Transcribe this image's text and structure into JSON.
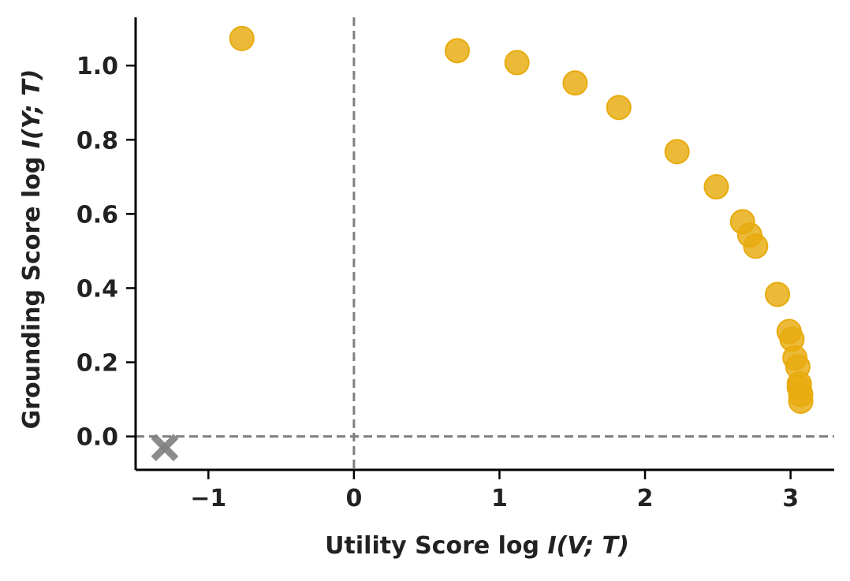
{
  "chart_data": {
    "type": "scatter",
    "xlabel_prefix": "Utility Score log ",
    "xlabel_math": "I(V; T)",
    "ylabel_prefix": "Grounding Score log ",
    "ylabel_math": "I(Y; T)",
    "xlim": [
      -1.5,
      3.3
    ],
    "ylim": [
      -0.09,
      1.13
    ],
    "x_ticks": [
      -1,
      0,
      1,
      2,
      3
    ],
    "x_tick_labels": [
      "−1",
      "0",
      "1",
      "2",
      "3"
    ],
    "y_ticks": [
      0.0,
      0.2,
      0.4,
      0.6,
      0.8,
      1.0
    ],
    "y_tick_labels": [
      "0.0",
      "0.2",
      "0.4",
      "0.6",
      "0.8",
      "1.0"
    ],
    "reference_lines": {
      "x": 0,
      "y": 0,
      "style": "dashed",
      "color": "#808080"
    },
    "grid": false,
    "series": [
      {
        "marker": "circle",
        "color": "#E8AB0E",
        "points": [
          [
            -0.77,
            1.073
          ],
          [
            0.71,
            1.04
          ],
          [
            1.12,
            1.008
          ],
          [
            1.52,
            0.953
          ],
          [
            1.82,
            0.887
          ],
          [
            2.22,
            0.768
          ],
          [
            2.49,
            0.673
          ],
          [
            2.67,
            0.579
          ],
          [
            2.72,
            0.543
          ],
          [
            2.76,
            0.513
          ],
          [
            2.91,
            0.383
          ],
          [
            2.99,
            0.283
          ],
          [
            3.01,
            0.262
          ],
          [
            3.03,
            0.212
          ],
          [
            3.05,
            0.188
          ],
          [
            3.06,
            0.142
          ],
          [
            3.06,
            0.132
          ],
          [
            3.07,
            0.113
          ],
          [
            3.07,
            0.095
          ]
        ]
      },
      {
        "marker": "x",
        "color": "#7F7F7F",
        "points": [
          [
            -1.3,
            -0.03
          ]
        ]
      }
    ]
  }
}
